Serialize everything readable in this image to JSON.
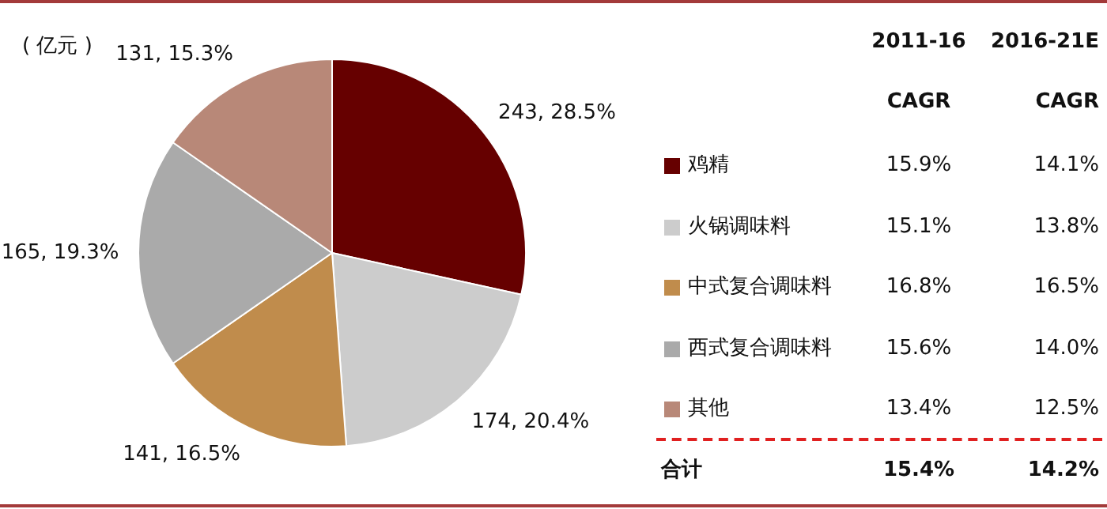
{
  "chart_data": {
    "type": "pie",
    "subtitle": "( 亿元 )",
    "categories": [
      "鸡精",
      "火锅调味料",
      "中式复合调味料",
      "西式复合调味料",
      "其他"
    ],
    "values": [
      243,
      174,
      141,
      165,
      131
    ],
    "colors": [
      "#660000",
      "#cccccc",
      "#c08c4c",
      "#aaaaaa",
      "#b88878"
    ],
    "value_labels": [
      "243, 28.5%",
      "174, 20.4%",
      "141, 16.5%",
      "165, 19.3%",
      "131, 15.3%"
    ],
    "legend": "right",
    "annotations": [
      "2011-16",
      "CAGR",
      "2016-21E",
      "CAGR",
      "15.9%",
      "14.1%",
      "15.1%",
      "13.8%",
      "16.8%",
      "16.5%",
      "15.6%",
      "14.0%",
      "13.4%",
      "12.5%",
      "合计",
      "15.4%",
      "14.2%"
    ]
  }
}
